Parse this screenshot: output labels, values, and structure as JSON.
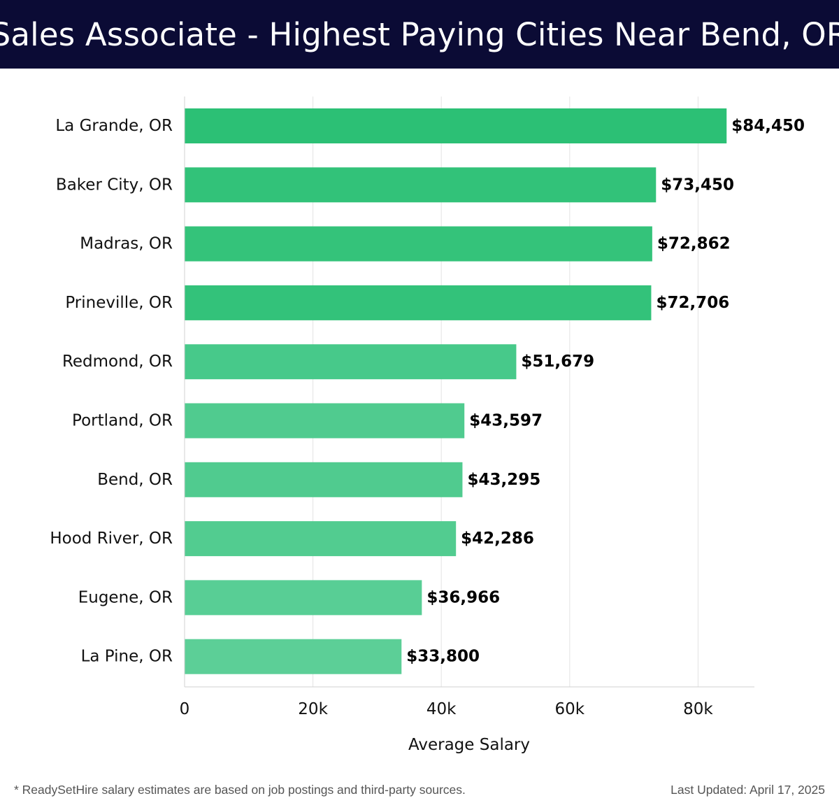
{
  "header": {
    "title": "Sales Associate - Highest Paying Cities Near Bend, OR"
  },
  "chart_data": {
    "type": "bar",
    "orientation": "horizontal",
    "categories": [
      "La Grande, OR",
      "Baker City, OR",
      "Madras, OR",
      "Prineville, OR",
      "Redmond, OR",
      "Portland, OR",
      "Bend, OR",
      "Hood River, OR",
      "Eugene, OR",
      "La Pine, OR"
    ],
    "values": [
      84450,
      73450,
      72862,
      72706,
      51679,
      43597,
      43295,
      42286,
      36966,
      33800
    ],
    "value_labels": [
      "$84,450",
      "$73,450",
      "$72,862",
      "$72,706",
      "$51,679",
      "$43,597",
      "$43,295",
      "$42,286",
      "$36,966",
      "$33,800"
    ],
    "xlabel": "Average Salary",
    "x_ticks": [
      0,
      20000,
      40000,
      60000,
      80000
    ],
    "x_tick_labels": [
      "0",
      "20k",
      "40k",
      "60k",
      "80k"
    ],
    "xlim": [
      0,
      89000
    ],
    "grid": true,
    "bar_colors": [
      "#2cc075",
      "#32c279",
      "#34c37a",
      "#33c27a",
      "#47c98a",
      "#50cb8f",
      "#50cb8f",
      "#52cc90",
      "#58ce95",
      "#5ccf97"
    ]
  },
  "footer": {
    "note": "* ReadySetHire salary estimates are based on job postings and third-party sources.",
    "updated": "Last Updated: April 17, 2025"
  }
}
